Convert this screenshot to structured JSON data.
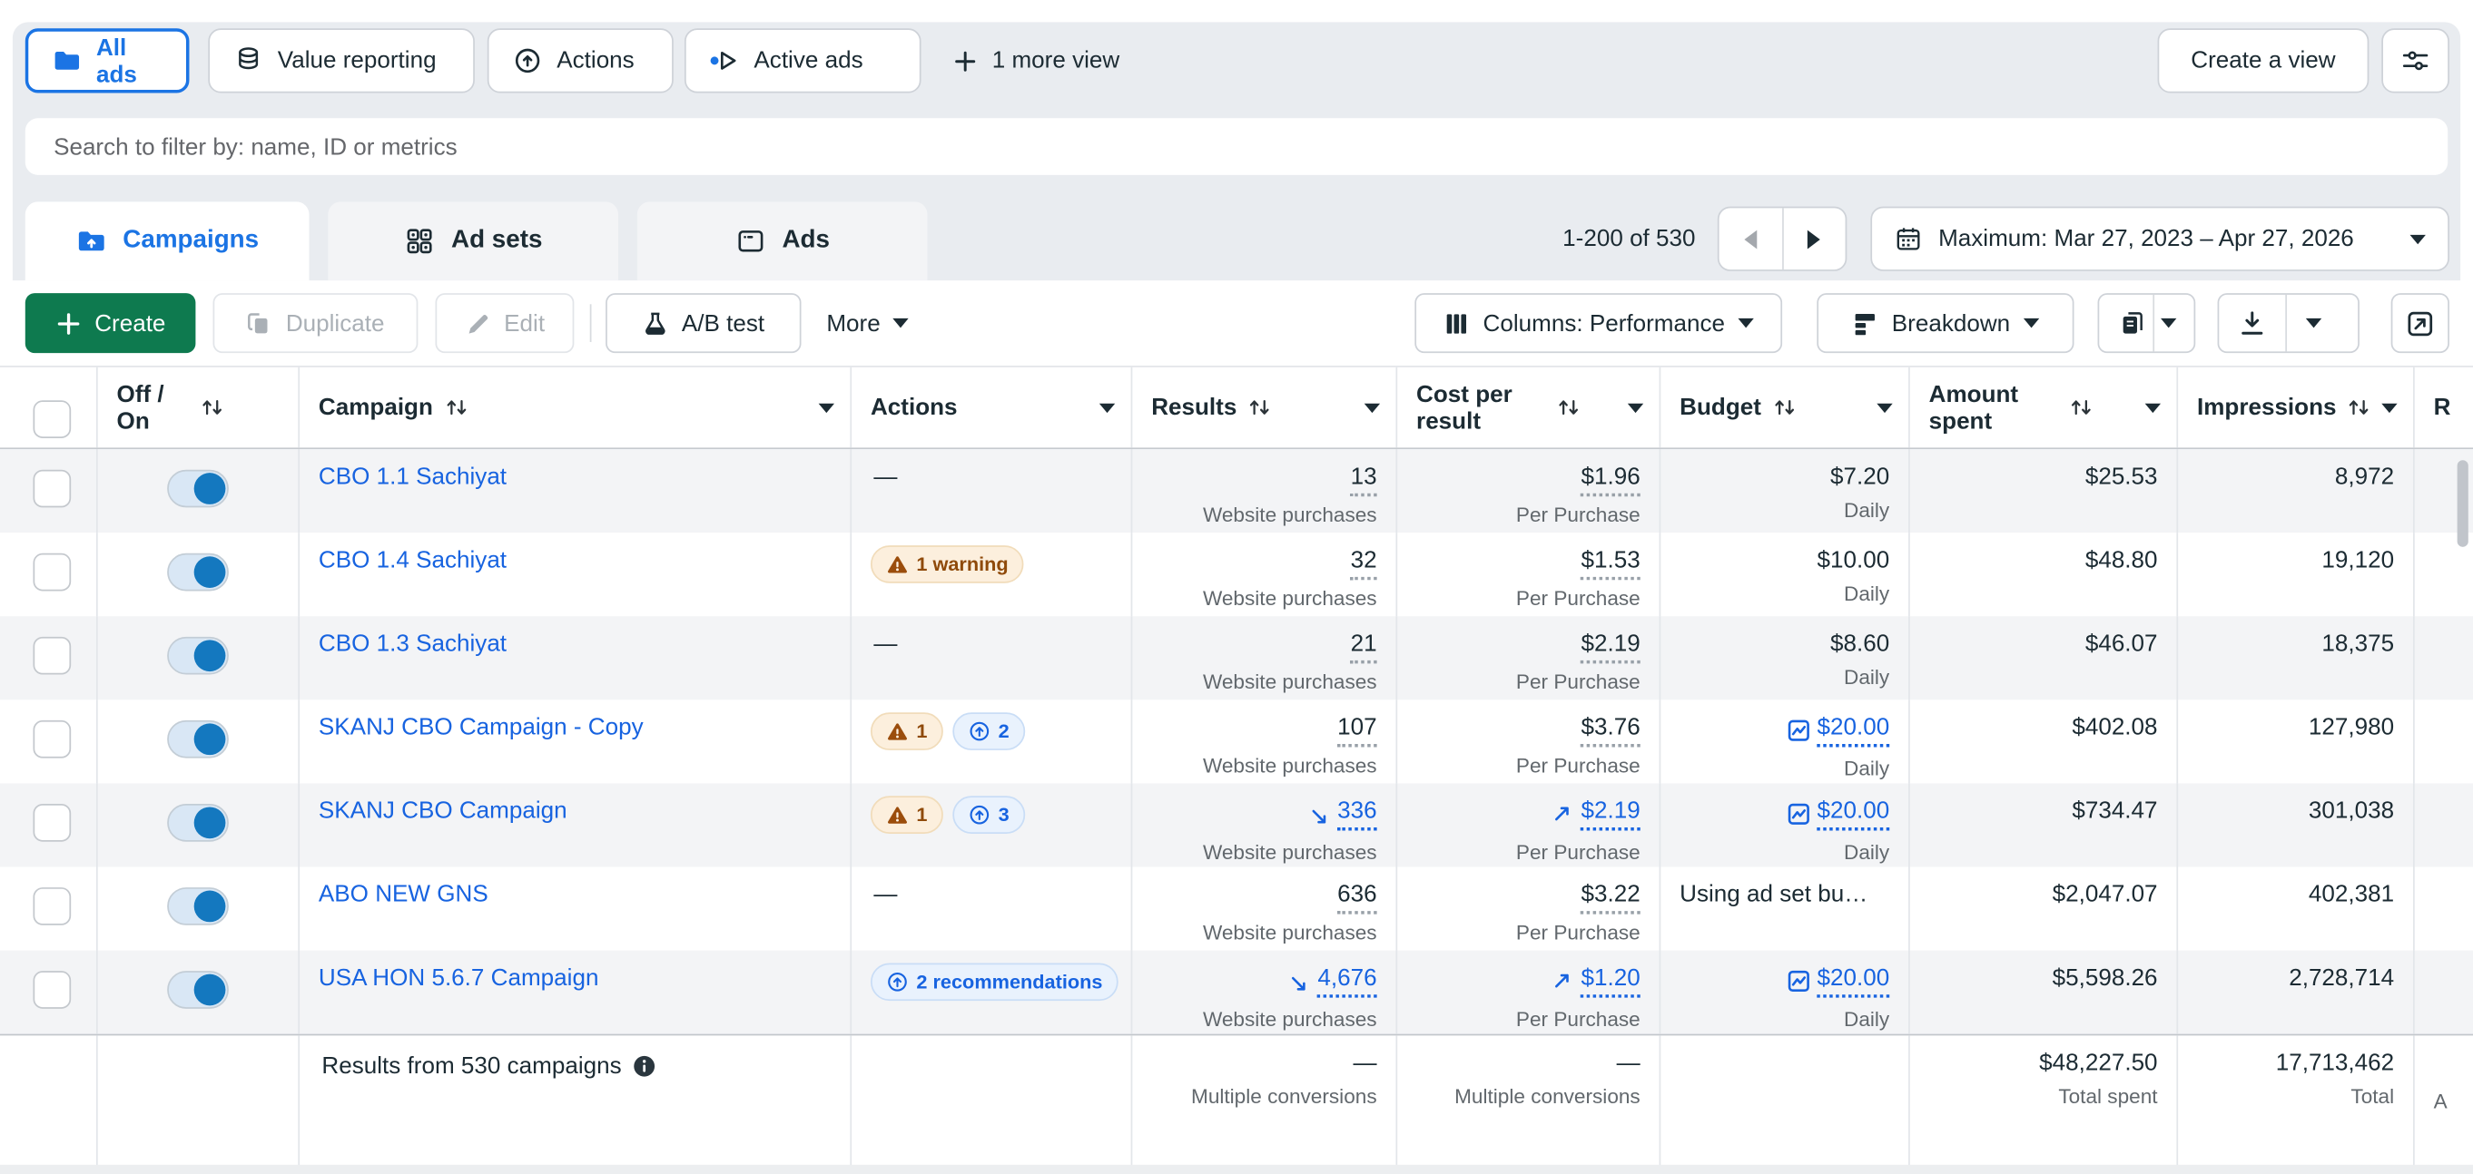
{
  "colors": {
    "accent_blue": "#1b74e4",
    "link_blue": "#1763e0",
    "toggle_blue": "#1478bf",
    "create_green": "#0e7a4f",
    "warning_text": "#8f4a0a"
  },
  "views_bar": {
    "tabs": [
      {
        "label": "All ads",
        "active": true
      },
      {
        "label": "Value reporting",
        "active": false
      },
      {
        "label": "Actions",
        "active": false
      },
      {
        "label": "Active ads",
        "active": false
      }
    ],
    "more_view_label": "1 more view",
    "create_view_label": "Create a view"
  },
  "search": {
    "placeholder": "Search to filter by: name, ID or metrics"
  },
  "level_tabs": [
    {
      "label": "Campaigns",
      "active": true
    },
    {
      "label": "Ad sets",
      "active": false
    },
    {
      "label": "Ads",
      "active": false
    }
  ],
  "pagination": {
    "range_label": "1-200 of 530"
  },
  "date_range": {
    "label": "Maximum: Mar 27, 2023 – Apr 27, 2026"
  },
  "toolbar": {
    "create_label": "Create",
    "duplicate_label": "Duplicate",
    "edit_label": "Edit",
    "ab_test_label": "A/B test",
    "more_label": "More",
    "columns_label": "Columns: Performance",
    "breakdown_label": "Breakdown"
  },
  "table": {
    "headers": {
      "off_on": "Off / On",
      "campaign": "Campaign",
      "actions": "Actions",
      "results": "Results",
      "cost_per_result": "Cost per result",
      "budget": "Budget",
      "amount_spent": "Amount spent",
      "impressions": "Impressions",
      "reach_partial": "R"
    },
    "rows": [
      {
        "campaign": "CBO 1.1 Sachiyat",
        "toggle_on": true,
        "actions": {
          "type": "dash"
        },
        "results": {
          "value": "13",
          "sub": "Website purchases"
        },
        "cost": {
          "value": "$1.96",
          "sub": "Per Purchase"
        },
        "budget": {
          "value": "$7.20",
          "sub": "Daily"
        },
        "amount": "$25.53",
        "impressions": "8,972"
      },
      {
        "campaign": "CBO 1.4 Sachiyat",
        "toggle_on": true,
        "actions": {
          "type": "badges",
          "badges": [
            {
              "kind": "warning",
              "label": "1 warning"
            }
          ]
        },
        "results": {
          "value": "32",
          "sub": "Website purchases"
        },
        "cost": {
          "value": "$1.53",
          "sub": "Per Purchase"
        },
        "budget": {
          "value": "$10.00",
          "sub": "Daily"
        },
        "amount": "$48.80",
        "impressions": "19,120"
      },
      {
        "campaign": "CBO 1.3 Sachiyat",
        "toggle_on": true,
        "actions": {
          "type": "dash"
        },
        "results": {
          "value": "21",
          "sub": "Website purchases"
        },
        "cost": {
          "value": "$2.19",
          "sub": "Per Purchase"
        },
        "budget": {
          "value": "$8.60",
          "sub": "Daily"
        },
        "amount": "$46.07",
        "impressions": "18,375"
      },
      {
        "campaign": "SKANJ CBO Campaign - Copy",
        "toggle_on": true,
        "actions": {
          "type": "badges",
          "badges": [
            {
              "kind": "warning",
              "label": "1"
            },
            {
              "kind": "recommendation",
              "label": "2"
            }
          ]
        },
        "results": {
          "value": "107",
          "sub": "Website purchases"
        },
        "cost": {
          "value": "$3.76",
          "sub": "Per Purchase"
        },
        "budget": {
          "value": "$20.00",
          "sub": "Daily",
          "chart": true
        },
        "amount": "$402.08",
        "impressions": "127,980"
      },
      {
        "campaign": "SKANJ CBO Campaign",
        "toggle_on": true,
        "actions": {
          "type": "badges",
          "badges": [
            {
              "kind": "warning",
              "label": "1"
            },
            {
              "kind": "recommendation",
              "label": "3"
            }
          ]
        },
        "results": {
          "value": "336",
          "sub": "Website purchases",
          "trend": "down"
        },
        "cost": {
          "value": "$2.19",
          "sub": "Per Purchase",
          "trend": "up"
        },
        "budget": {
          "value": "$20.00",
          "sub": "Daily",
          "chart": true
        },
        "amount": "$734.47",
        "impressions": "301,038"
      },
      {
        "campaign": "ABO NEW GNS",
        "toggle_on": true,
        "actions": {
          "type": "dash"
        },
        "results": {
          "value": "636",
          "sub": "Website purchases"
        },
        "cost": {
          "value": "$3.22",
          "sub": "Per Purchase"
        },
        "budget": {
          "text": "Using ad set bu…"
        },
        "amount": "$2,047.07",
        "impressions": "402,381"
      },
      {
        "campaign": "USA HON 5.6.7 Campaign",
        "toggle_on": true,
        "actions": {
          "type": "badges",
          "badges": [
            {
              "kind": "recommendation",
              "label": "2 recommendations"
            }
          ]
        },
        "results": {
          "value": "4,676",
          "sub": "Website purchases",
          "trend": "down"
        },
        "cost": {
          "value": "$1.20",
          "sub": "Per Purchase",
          "trend": "up"
        },
        "budget": {
          "value": "$20.00",
          "sub": "Daily",
          "chart": true
        },
        "amount": "$5,598.26",
        "impressions": "2,728,714"
      }
    ],
    "footer": {
      "results_label": "Results from 530 campaigns",
      "results": {
        "value": "—",
        "sub": "Multiple conversions"
      },
      "cost": {
        "value": "—",
        "sub": "Multiple conversions"
      },
      "amount": {
        "value": "$48,227.50",
        "sub": "Total spent"
      },
      "impressions": {
        "value": "17,713,462",
        "sub": "Total"
      },
      "reach_partial": "A"
    }
  }
}
